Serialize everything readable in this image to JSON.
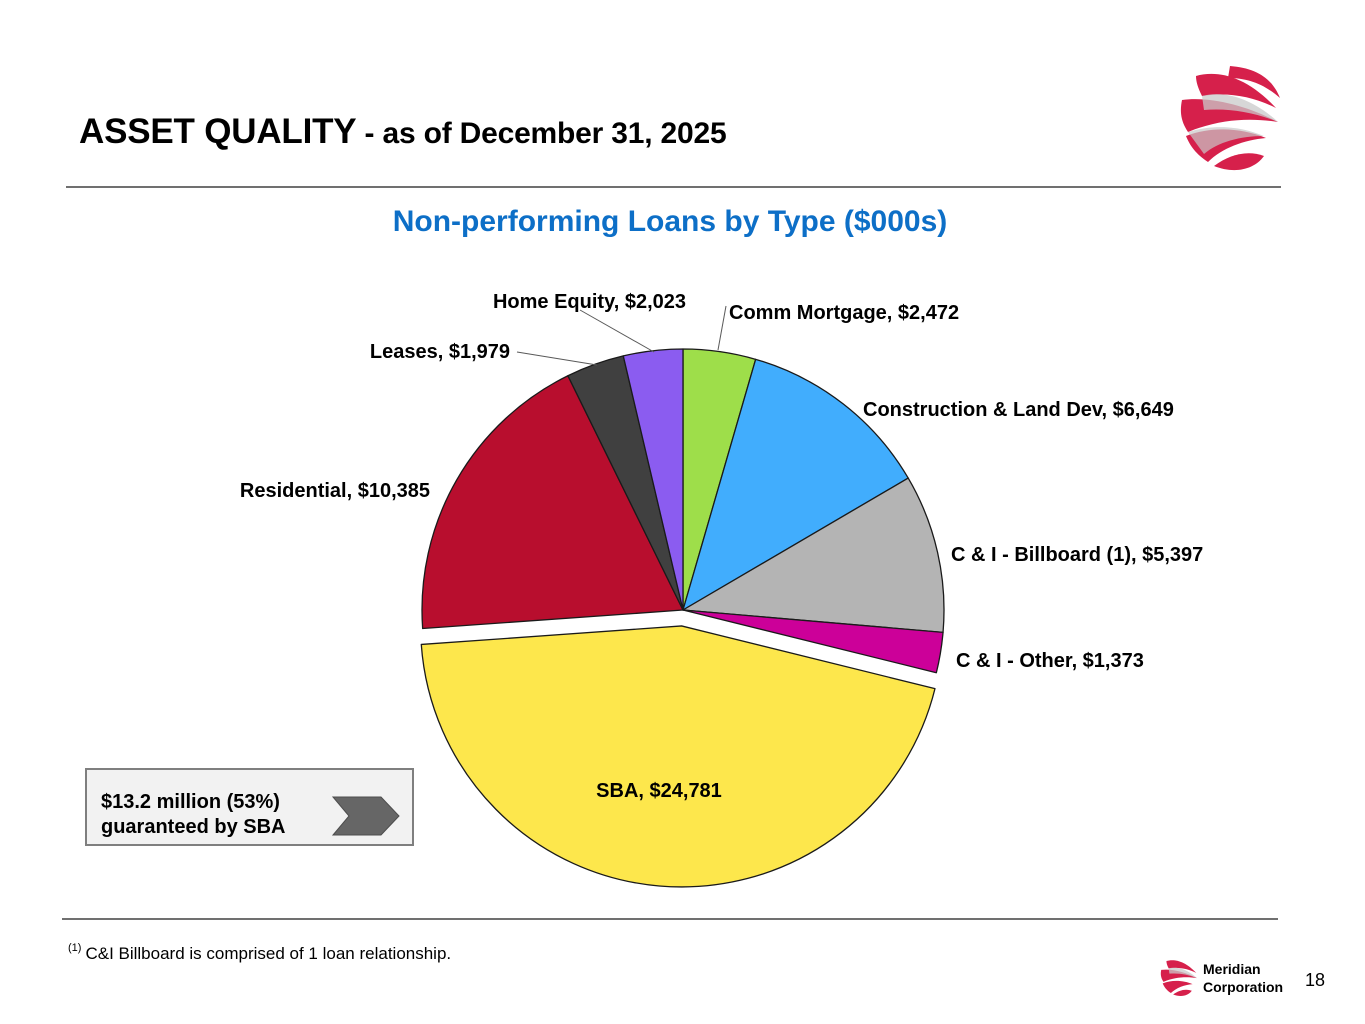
{
  "header": {
    "title_main": "ASSET QUALITY",
    "title_sub": " - as of December 31, 2025"
  },
  "chart_data": {
    "type": "pie",
    "title": "Non-performing Loans by Type ($000s)",
    "unit": "$000s",
    "start_angle": "12 o'clock",
    "direction": "clockwise",
    "exploded_slice": "SBA",
    "slices": [
      {
        "name": "Comm Mortgage",
        "value": 2472,
        "label": "Comm Mortgage, $2,472",
        "color": "#9ede4a"
      },
      {
        "name": "Construction & Land Dev",
        "value": 6649,
        "label": "Construction & Land Dev, $6,649",
        "color": "#41adfd"
      },
      {
        "name": "C & I - Billboard (1)",
        "value": 5397,
        "label": "C & I - Billboard (1), $5,397",
        "color": "#b4b4b4"
      },
      {
        "name": "C & I - Other",
        "value": 1373,
        "label": "C & I - Other, $1,373",
        "color": "#cc0099"
      },
      {
        "name": "SBA",
        "value": 24781,
        "label": "SBA, $24,781",
        "color": "#fde74c"
      },
      {
        "name": "Residential",
        "value": 10385,
        "label": "Residential, $10,385",
        "color": "#b80e2e"
      },
      {
        "name": "Leases",
        "value": 1979,
        "label": "Leases, $1,979",
        "color": "#404040"
      },
      {
        "name": "Home Equity",
        "value": 2023,
        "label": "Home Equity, $2,023",
        "color": "#8b5cf0"
      }
    ]
  },
  "callout": {
    "line1": "$13.2 million (53%)",
    "line2": "guaranteed by SBA",
    "icon": "chevron-arrow-icon"
  },
  "footer": {
    "footnote_marker": "(1)",
    "footnote_text": "C&I Billboard is comprised of 1 loan relationship.",
    "company_line1": "Meridian",
    "company_line2": "Corporation",
    "page_number": "18"
  },
  "colors": {
    "accent": "#0d6fc7",
    "brand": "#d6204b"
  }
}
